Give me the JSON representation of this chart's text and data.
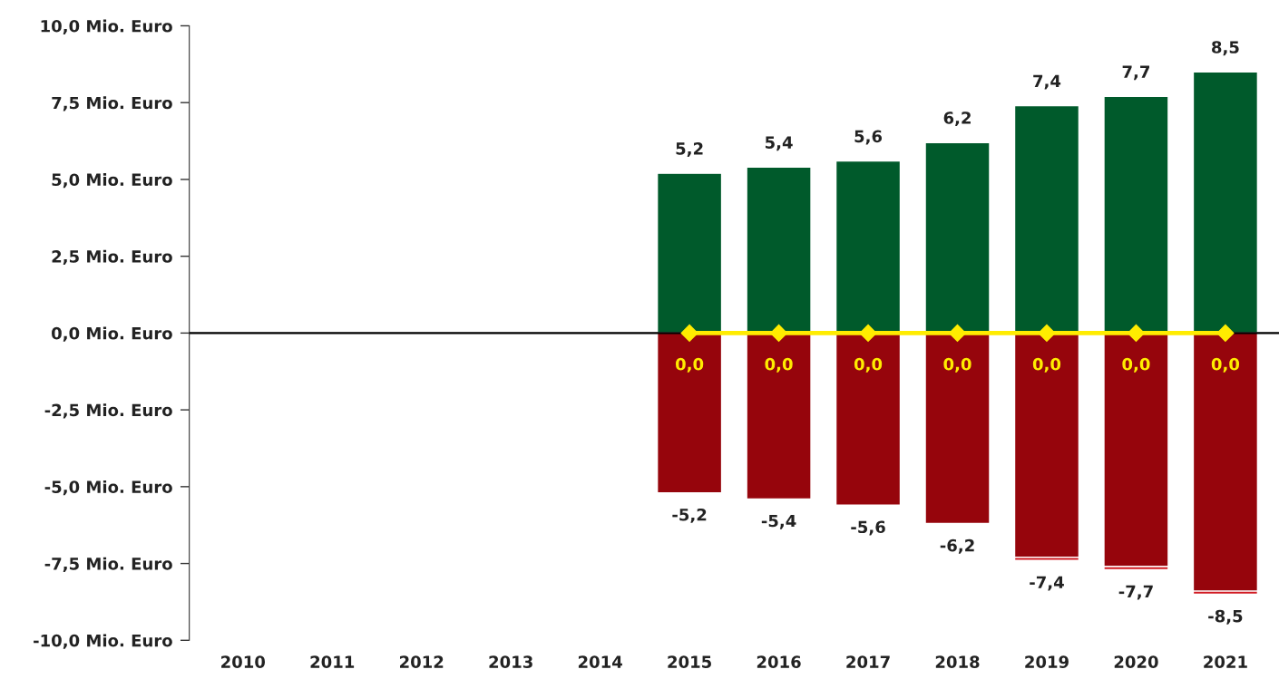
{
  "chart_data": {
    "type": "bar",
    "stacked": true,
    "categories": [
      "2010",
      "2011",
      "2012",
      "2013",
      "2014",
      "2015",
      "2016",
      "2017",
      "2018",
      "2019",
      "2020",
      "2021"
    ],
    "series": [
      {
        "color": "#005a2b",
        "values": [
          null,
          null,
          null,
          null,
          null,
          5.2,
          5.4,
          5.6,
          6.2,
          7.4,
          7.7,
          8.5
        ],
        "value_labels": [
          null,
          null,
          null,
          null,
          null,
          "5,2",
          "5,4",
          "5,6",
          "6,2",
          "7,4",
          "7,7",
          "8,5"
        ]
      },
      {
        "color": "#96050c",
        "values": [
          null,
          null,
          null,
          null,
          null,
          -5.2,
          -5.4,
          -5.6,
          -6.2,
          -7.3,
          -7.6,
          -8.4
        ]
      },
      {
        "color": "#d11a22",
        "values": [
          null,
          null,
          null,
          null,
          null,
          null,
          null,
          null,
          null,
          -0.1,
          -0.1,
          -0.1
        ]
      },
      {
        "type": "line",
        "color": "#ffec00",
        "marker": "diamond",
        "values": [
          null,
          null,
          null,
          null,
          null,
          0.0,
          0.0,
          0.0,
          0.0,
          0.0,
          0.0,
          0.0
        ],
        "value_labels": [
          null,
          null,
          null,
          null,
          null,
          "0,0",
          "0,0",
          "0,0",
          "0,0",
          "0,0",
          "0,0",
          "0,0"
        ]
      }
    ],
    "annotations": [
      {
        "text": "-5,2",
        "x": "2015",
        "y": -5.2
      },
      {
        "text": "-5,4",
        "x": "2016",
        "y": -5.4
      },
      {
        "text": "-5,6",
        "x": "2017",
        "y": -5.6
      },
      {
        "text": "-6,2",
        "x": "2018",
        "y": -6.2
      },
      {
        "text": "-7,4",
        "x": "2019",
        "y": -7.4
      },
      {
        "text": "-7,7",
        "x": "2020",
        "y": -7.7
      },
      {
        "text": "-8,5",
        "x": "2021",
        "y": -8.5
      }
    ],
    "ylim": [
      -10,
      10
    ],
    "yticks": [
      {
        "value": 10,
        "label": "10,0 Mio. Euro"
      },
      {
        "value": 7.5,
        "label": "7,5 Mio. Euro"
      },
      {
        "value": 5,
        "label": "5,0 Mio. Euro"
      },
      {
        "value": 2.5,
        "label": "2,5 Mio. Euro"
      },
      {
        "value": 0,
        "label": "0,0 Mio. Euro"
      },
      {
        "value": -2.5,
        "label": "-2,5 Mio. Euro"
      },
      {
        "value": -5,
        "label": "-5,0 Mio. Euro"
      },
      {
        "value": -7.5,
        "label": "-7,5 Mio. Euro"
      },
      {
        "value": -10,
        "label": "-10,0 Mio. Euro"
      }
    ],
    "ref_lines": [
      {
        "axis": "y",
        "value": 0,
        "color": "#000000"
      }
    ],
    "grid": false,
    "legend": false
  }
}
